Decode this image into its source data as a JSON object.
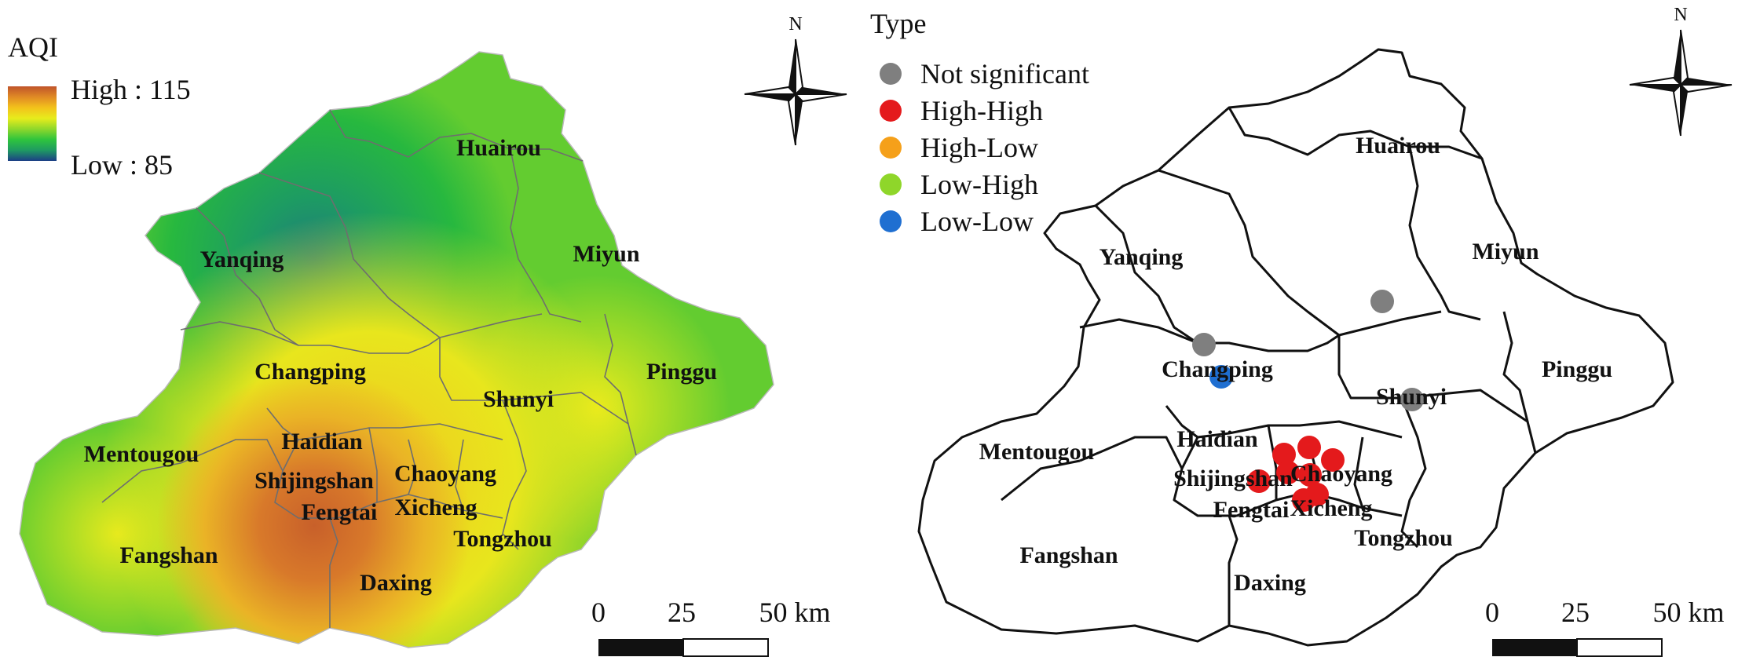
{
  "left_map": {
    "legend": {
      "title": "AQI",
      "high_label": "High : 115",
      "low_label": "Low : 85",
      "gradient_colors": [
        "#c0542a",
        "#e08a25",
        "#f3c21b",
        "#e7ec1c",
        "#8fd82b",
        "#2ec43d",
        "#1f9a62",
        "#1c3f86"
      ]
    },
    "north_label": "N",
    "scale_bar": {
      "labels": [
        "0",
        "25",
        "50 km"
      ]
    },
    "districts": [
      {
        "name": "Huairou"
      },
      {
        "name": "Yanqing"
      },
      {
        "name": "Miyun"
      },
      {
        "name": "Changping"
      },
      {
        "name": "Pinggu"
      },
      {
        "name": "Shunyi"
      },
      {
        "name": "Haidian"
      },
      {
        "name": "Mentougou"
      },
      {
        "name": "Chaoyang"
      },
      {
        "name": "Shijingshan"
      },
      {
        "name": "Fengtai"
      },
      {
        "name": "Xicheng"
      },
      {
        "name": "Tongzhou"
      },
      {
        "name": "Fangshan"
      },
      {
        "name": "Daxing"
      }
    ]
  },
  "right_map": {
    "legend": {
      "title": "Type",
      "items": [
        {
          "label": "Not significant",
          "color": "#7f7f7f"
        },
        {
          "label": "High-High",
          "color": "#e41a1c"
        },
        {
          "label": "High-Low",
          "color": "#f5a01a"
        },
        {
          "label": "Low-High",
          "color": "#8fd62a"
        },
        {
          "label": "Low-Low",
          "color": "#1f6fd1"
        }
      ]
    },
    "north_label": "N",
    "scale_bar": {
      "labels": [
        "0",
        "25",
        "50 km"
      ]
    },
    "districts": [
      {
        "name": "Huairou"
      },
      {
        "name": "Yanqing"
      },
      {
        "name": "Miyun"
      },
      {
        "name": "Changping"
      },
      {
        "name": "Pinggu"
      },
      {
        "name": "Shunyi"
      },
      {
        "name": "Haidian"
      },
      {
        "name": "Mentougou"
      },
      {
        "name": "Chaoyang"
      },
      {
        "name": "Shijingshan"
      },
      {
        "name": "Fengtai"
      },
      {
        "name": "Xicheng"
      },
      {
        "name": "Tongzhou"
      },
      {
        "name": "Fangshan"
      },
      {
        "name": "Daxing"
      }
    ],
    "points": [
      {
        "type": "Not significant"
      },
      {
        "type": "Not significant"
      },
      {
        "type": "Not significant"
      },
      {
        "type": "Low-Low"
      },
      {
        "type": "High-High"
      },
      {
        "type": "High-High"
      },
      {
        "type": "High-High"
      },
      {
        "type": "High-High"
      },
      {
        "type": "High-High"
      },
      {
        "type": "High-High"
      },
      {
        "type": "High-High"
      },
      {
        "type": "High-High"
      }
    ]
  }
}
